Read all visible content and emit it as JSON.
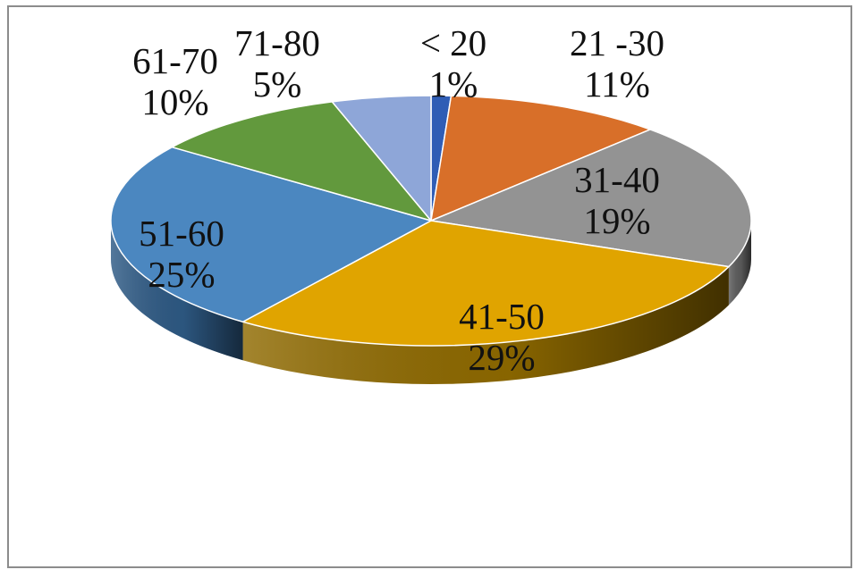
{
  "chart_data": {
    "type": "pie",
    "title": "",
    "three_d": true,
    "slices": [
      {
        "label": "< 20",
        "percent_label": "1%",
        "value": 1,
        "color": "#2F5DB5",
        "side_color": "#1F3E78"
      },
      {
        "label": "21 -30",
        "percent_label": "11%",
        "value": 11,
        "color": "#D86F29",
        "side_color": "#8A4418"
      },
      {
        "label": "31-40",
        "percent_label": "19%",
        "value": 19,
        "color": "#939393",
        "side_color": "#5C5C5C"
      },
      {
        "label": "41-50",
        "percent_label": "29%",
        "value": 29,
        "color": "#E0A400",
        "side_color": "#8F6A00"
      },
      {
        "label": "51-60",
        "percent_label": "25%",
        "value": 25,
        "color": "#4B87C0",
        "side_color": "#2E5A85"
      },
      {
        "label": "61-70",
        "percent_label": "10%",
        "value": 10,
        "color": "#62993D",
        "side_color": "#3E6126"
      },
      {
        "label": "71-80",
        "percent_label": "5%",
        "value": 5,
        "color": "#8EA6D8",
        "side_color": "#5A6E99"
      }
    ]
  }
}
